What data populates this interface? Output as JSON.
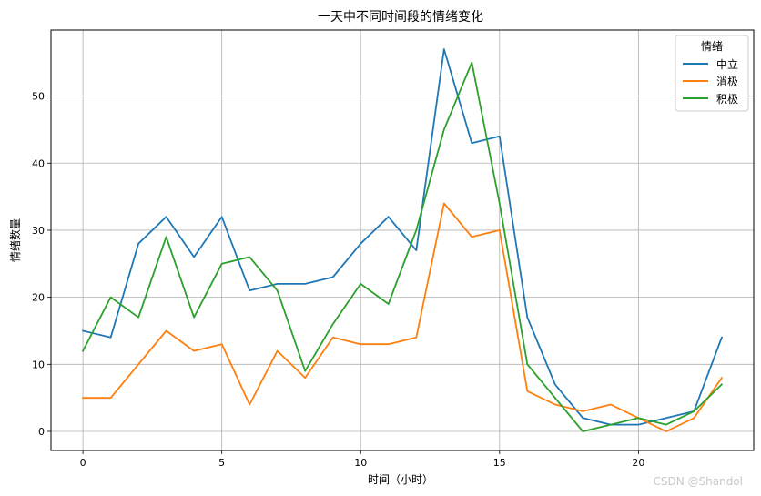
{
  "chart_data": {
    "type": "line",
    "title": "一天中不同时间段的情绪变化",
    "xlabel": "时间（小时）",
    "ylabel": "情绪数量",
    "xlim": [
      -1.15,
      24.15
    ],
    "ylim": [
      -2.85,
      59.85
    ],
    "xticks": [
      0,
      5,
      10,
      15,
      20
    ],
    "yticks": [
      0,
      10,
      20,
      30,
      40,
      50
    ],
    "grid": true,
    "legend": {
      "title": "情绪",
      "placement": "top-right"
    },
    "x": [
      0,
      1,
      2,
      3,
      4,
      5,
      6,
      7,
      8,
      9,
      10,
      11,
      12,
      13,
      14,
      15,
      16,
      17,
      18,
      19,
      20,
      21,
      22,
      23
    ],
    "series": [
      {
        "name": "中立",
        "color": "#1f77b4",
        "values": [
          15,
          14,
          28,
          32,
          26,
          32,
          21,
          22,
          22,
          23,
          28,
          32,
          27,
          57,
          43,
          44,
          17,
          7,
          2,
          1,
          1,
          2,
          3,
          14
        ]
      },
      {
        "name": "消极",
        "color": "#ff7f0e",
        "values": [
          5,
          5,
          10,
          15,
          12,
          13,
          4,
          12,
          8,
          14,
          13,
          13,
          14,
          34,
          29,
          30,
          6,
          4,
          3,
          4,
          2,
          0,
          2,
          8
        ]
      },
      {
        "name": "积极",
        "color": "#2ca02c",
        "values": [
          12,
          20,
          17,
          29,
          17,
          25,
          26,
          21,
          9,
          16,
          22,
          19,
          30,
          45,
          55,
          34,
          10,
          5,
          0,
          1,
          2,
          1,
          3,
          7
        ]
      }
    ]
  },
  "watermark": "CSDN @Shandol"
}
